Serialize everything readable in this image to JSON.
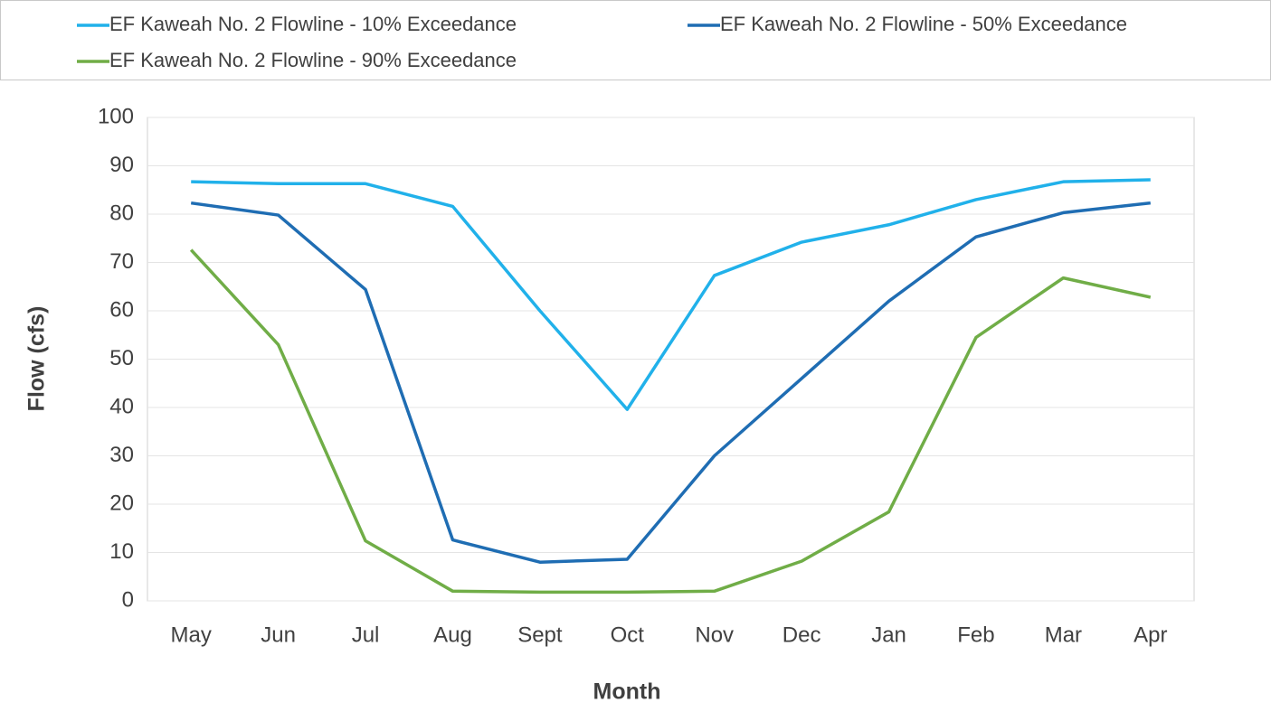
{
  "chart_data": {
    "type": "line",
    "x_label": "Month",
    "y_label": "Flow (cfs)",
    "categories": [
      "May",
      "Jun",
      "Jul",
      "Aug",
      "Sept",
      "Oct",
      "Nov",
      "Dec",
      "Jan",
      "Feb",
      "Mar",
      "Apr"
    ],
    "series": [
      {
        "name": "EF Kaweah No. 2 Flowline - 10% Exceedance",
        "color": "#21b1ea",
        "values": [
          86.7,
          86.3,
          86.3,
          81.6,
          60,
          39.6,
          67.3,
          74.2,
          77.8,
          83,
          86.7,
          87.1
        ]
      },
      {
        "name": "EF Kaweah No. 2 Flowline - 50% Exceedance",
        "color": "#1f6db3",
        "values": [
          82.3,
          79.8,
          64.4,
          12.6,
          8,
          8.6,
          30,
          46,
          62,
          75.3,
          80.3,
          82.3
        ]
      },
      {
        "name": "EF Kaweah No. 2 Flowline - 90% Exceedance",
        "color": "#70ad47",
        "values": [
          72.6,
          53,
          12.4,
          2,
          1.8,
          1.8,
          2,
          8.2,
          18.4,
          54.5,
          66.8,
          62.8
        ]
      }
    ],
    "ylim": [
      0,
      100
    ],
    "yticks": [
      0,
      10,
      20,
      30,
      40,
      50,
      60,
      70,
      80,
      90,
      100
    ],
    "grid": true,
    "legend": "top"
  }
}
